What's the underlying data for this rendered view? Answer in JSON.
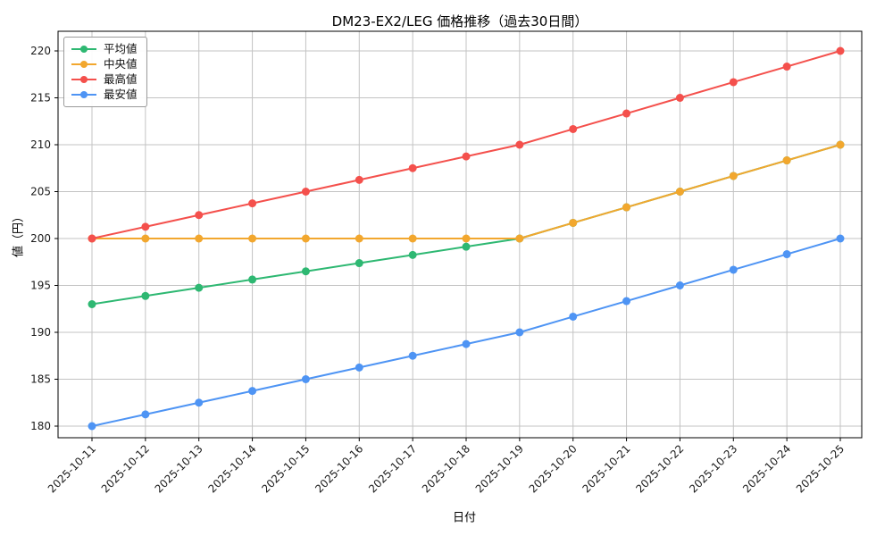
{
  "chart_data": {
    "type": "line",
    "title": "DM23-EX2/LEG 価格推移（過去30日間）",
    "xlabel": "日付",
    "ylabel": "値（円）",
    "categories": [
      "2025-10-11",
      "2025-10-12",
      "2025-10-13",
      "2025-10-14",
      "2025-10-15",
      "2025-10-16",
      "2025-10-17",
      "2025-10-18",
      "2025-10-19",
      "2025-10-20",
      "2025-10-21",
      "2025-10-22",
      "2025-10-23",
      "2025-10-24",
      "2025-10-25"
    ],
    "series": [
      {
        "name": "平均値",
        "color": "#2eb872",
        "values": [
          193,
          193.88,
          194.75,
          195.63,
          196.5,
          197.38,
          198.25,
          199.13,
          200,
          201.67,
          203.33,
          205,
          206.67,
          208.33,
          210
        ]
      },
      {
        "name": "中央値",
        "color": "#f2a72e",
        "values": [
          200,
          200,
          200,
          200,
          200,
          200,
          200,
          200,
          200,
          201.67,
          203.33,
          205,
          206.67,
          208.33,
          210
        ]
      },
      {
        "name": "最高値",
        "color": "#f4504c",
        "values": [
          200,
          201.25,
          202.5,
          203.75,
          205,
          206.25,
          207.5,
          208.75,
          210,
          211.67,
          213.33,
          215,
          216.67,
          218.33,
          220
        ]
      },
      {
        "name": "最安値",
        "color": "#4e94f4",
        "values": [
          180,
          181.25,
          182.5,
          183.75,
          185,
          186.25,
          187.5,
          188.75,
          190,
          191.67,
          193.33,
          195,
          196.67,
          198.33,
          200
        ]
      }
    ],
    "yticks": [
      180,
      185,
      190,
      195,
      200,
      205,
      210,
      215,
      220
    ],
    "ylim": [
      178,
      222
    ],
    "grid": true,
    "grid_color": "#c3c3c3",
    "axis_color": "#000000",
    "legend_position": "upper-left",
    "background": "#ffffff"
  }
}
